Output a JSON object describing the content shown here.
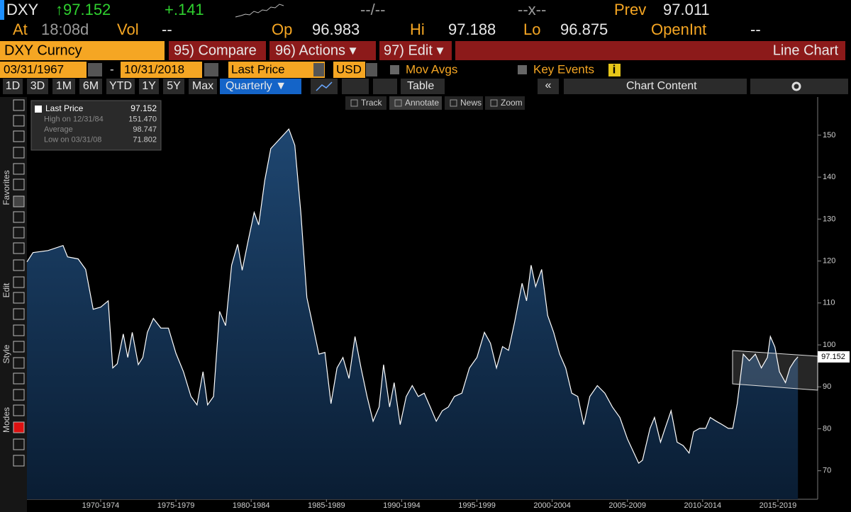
{
  "header": {
    "ticker": "DXY",
    "last": "↑97.152",
    "change": "+.141",
    "bid_ask": "--/--",
    "size": "--x--",
    "prev_label": "Prev",
    "prev": "97.011",
    "at_label": "At",
    "time": "18:08d",
    "vol_label": "Vol",
    "vol": "--",
    "open_label": "Op",
    "open": "96.983",
    "high_label": "Hi",
    "high": "97.188",
    "low_label": "Lo",
    "low": "96.875",
    "oi_label": "OpenInt",
    "oi": "--"
  },
  "menu": {
    "security": "DXY Curncy",
    "compare": "95) Compare",
    "actions": "96) Actions ▾",
    "edit": "97) Edit ▾",
    "chart_type": "Line Chart"
  },
  "controls": {
    "start_date": "03/31/1967",
    "dash": "-",
    "end_date": "10/31/2018",
    "field": "Last Price",
    "currency": "USD",
    "mov_avgs": "Mov Avgs",
    "key_events": "Key Events",
    "info": "i"
  },
  "periods": [
    "1D",
    "3D",
    "1M",
    "6M",
    "YTD",
    "1Y",
    "5Y",
    "Max"
  ],
  "frequency": "Quarterly ▼",
  "table": "Table",
  "collapse": "«",
  "chart_content": "Chart Content",
  "tools": [
    "Track",
    "Annotate",
    "News",
    "Zoom"
  ],
  "sidebar": [
    "Favorites",
    "Edit",
    "Style",
    "Modes"
  ],
  "legend": {
    "rows": [
      [
        "Last Price",
        "97.152"
      ],
      [
        "High on 12/31/84",
        "151.470"
      ],
      [
        "Average",
        "98.747"
      ],
      [
        "Low on 03/31/08",
        "71.802"
      ]
    ]
  },
  "chart_data": {
    "type": "area",
    "color": "#ffffff",
    "fill": "#12335a",
    "x": [
      1967.6,
      1968.0,
      1969.0,
      1970.0,
      1970.3,
      1971.0,
      1971.5,
      1972.0,
      1972.5,
      1973.0,
      1973.3,
      1973.6,
      1974.0,
      1974.3,
      1974.6,
      1975.0,
      1975.3,
      1975.6,
      1976.0,
      1976.5,
      1977.0,
      1977.5,
      1978.0,
      1978.5,
      1978.9,
      1979.3,
      1979.6,
      1980.0,
      1980.4,
      1980.8,
      1981.2,
      1981.6,
      1981.9,
      1982.3,
      1982.7,
      1983.0,
      1983.4,
      1983.8,
      1985.0,
      1985.4,
      1985.8,
      1986.2,
      1986.6,
      1987.0,
      1987.4,
      1987.8,
      1988.2,
      1988.6,
      1989.0,
      1989.4,
      1989.8,
      1990.2,
      1990.6,
      1991.0,
      1991.3,
      1991.7,
      1992.0,
      1992.4,
      1992.8,
      1993.2,
      1993.6,
      1994.0,
      1994.4,
      1994.8,
      1995.2,
      1995.6,
      1996.0,
      1996.5,
      1997.0,
      1997.5,
      1998.0,
      1998.4,
      1998.8,
      1999.2,
      1999.6,
      2000.0,
      2000.5,
      2000.8,
      2001.1,
      2001.4,
      2001.8,
      2002.2,
      2002.6,
      2003.0,
      2003.4,
      2003.8,
      2004.2,
      2004.6,
      2005.0,
      2005.5,
      2006.0,
      2006.5,
      2007.0,
      2007.5,
      2008.25,
      2008.5,
      2009.0,
      2009.3,
      2009.7,
      2010.0,
      2010.4,
      2010.8,
      2011.2,
      2011.6,
      2011.9,
      2012.3,
      2012.7,
      2013.0,
      2013.4,
      2013.8,
      2014.2,
      2014.5,
      2014.8,
      2015.2,
      2015.6,
      2016.0,
      2016.4,
      2016.8,
      2017.0,
      2017.3,
      2017.6,
      2018.0,
      2018.3,
      2018.6,
      2018.83
    ],
    "values": [
      119.8,
      122.0,
      122.5,
      123.7,
      121.0,
      120.5,
      118.0,
      108.5,
      109.0,
      110.5,
      94.5,
      95.5,
      102.6,
      97.0,
      103.0,
      95.3,
      97.0,
      103.0,
      106.3,
      104.0,
      104.0,
      98.0,
      93.6,
      87.7,
      85.7,
      93.6,
      85.7,
      87.7,
      108.0,
      104.6,
      119.0,
      124.0,
      117.8,
      124.9,
      131.6,
      128.6,
      139.2,
      146.8,
      151.47,
      147.6,
      131.6,
      111.3,
      104.6,
      97.8,
      98.2,
      86.0,
      94.5,
      97.0,
      92.0,
      102.0,
      94.5,
      87.7,
      81.8,
      85.2,
      95.3,
      85.2,
      91.0,
      81.0,
      87.7,
      90.3,
      87.7,
      88.5,
      85.2,
      81.8,
      84.3,
      85.2,
      87.7,
      88.5,
      94.5,
      97.0,
      103.0,
      100.4,
      94.5,
      99.6,
      98.7,
      105.4,
      114.7,
      110.5,
      119.0,
      113.9,
      118.0,
      107.0,
      103.0,
      97.8,
      94.5,
      88.5,
      87.7,
      81.0,
      87.7,
      90.3,
      88.5,
      85.2,
      82.7,
      77.6,
      71.802,
      72.5,
      80.1,
      82.7,
      76.8,
      80.1,
      84.3,
      76.8,
      76.0,
      74.2,
      79.3,
      80.1,
      80.1,
      82.7,
      81.8,
      81.0,
      80.1,
      80.1,
      86.0,
      97.8,
      96.2,
      97.8,
      94.5,
      97.0,
      102.0,
      99.5,
      93.6,
      91.0,
      94.5,
      96.2,
      97.152
    ],
    "xlim": [
      1967.6,
      2020.0
    ],
    "xticks": [
      {
        "value": 1972.5,
        "label": "1970-1974"
      },
      {
        "value": 1977.5,
        "label": "1975-1979"
      },
      {
        "value": 1982.5,
        "label": "1980-1984"
      },
      {
        "value": 1987.5,
        "label": "1985-1989"
      },
      {
        "value": 1992.5,
        "label": "1990-1994"
      },
      {
        "value": 1997.5,
        "label": "1995-1999"
      },
      {
        "value": 2002.5,
        "label": "2000-2004"
      },
      {
        "value": 2007.5,
        "label": "2005-2009"
      },
      {
        "value": 2012.5,
        "label": "2010-2014"
      },
      {
        "value": 2017.5,
        "label": "2015-2019"
      }
    ],
    "ylim": [
      63.2,
      159.1
    ],
    "yticks": [
      70,
      80,
      90,
      100,
      110,
      120,
      130,
      140,
      150
    ],
    "grid": false
  }
}
